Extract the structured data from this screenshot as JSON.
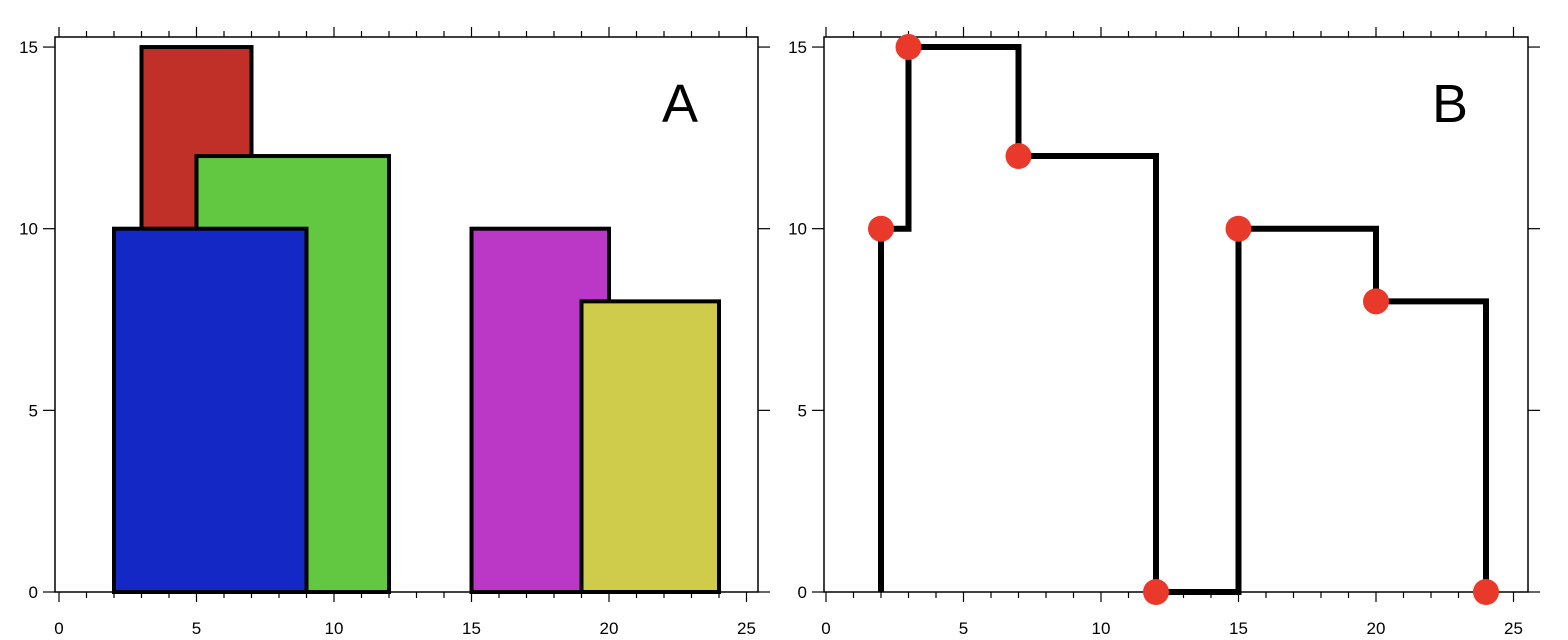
{
  "chart_data": [
    {
      "type": "bar",
      "subtype": "overlapping-rectangles",
      "panel_label": "A",
      "xlim": [
        0,
        25
      ],
      "ylim": [
        0,
        15
      ],
      "x_ticks": [
        0,
        5,
        10,
        15,
        20,
        25
      ],
      "y_ticks": [
        0,
        5,
        10,
        15
      ],
      "grid": false,
      "rectangles": [
        {
          "x_left": 3,
          "x_right": 7,
          "height": 15,
          "color": "#c03028"
        },
        {
          "x_left": 5,
          "x_right": 12,
          "height": 12,
          "color": "#62c842"
        },
        {
          "x_left": 2,
          "x_right": 9,
          "height": 10,
          "color": "#1328c4"
        },
        {
          "x_left": 15,
          "x_right": 20,
          "height": 10,
          "color": "#bb38c6"
        },
        {
          "x_left": 19,
          "x_right": 24,
          "height": 8,
          "color": "#cfcc4b"
        }
      ]
    },
    {
      "type": "line",
      "subtype": "skyline-step",
      "panel_label": "B",
      "xlim": [
        0,
        25
      ],
      "ylim": [
        0,
        15
      ],
      "x_ticks": [
        0,
        5,
        10,
        15,
        20,
        25
      ],
      "y_ticks": [
        0,
        5,
        10,
        15
      ],
      "grid": false,
      "line_color": "#000000",
      "marker_color": "#e8392a",
      "series": [
        {
          "x": [
            2,
            2,
            3,
            3,
            7,
            7,
            12,
            12,
            15,
            15,
            20,
            20,
            24,
            24
          ],
          "y": [
            0,
            10,
            10,
            15,
            15,
            12,
            12,
            0,
            0,
            10,
            10,
            8,
            8,
            0
          ]
        }
      ],
      "key_points": [
        {
          "x": 2,
          "y": 10
        },
        {
          "x": 3,
          "y": 15
        },
        {
          "x": 7,
          "y": 12
        },
        {
          "x": 12,
          "y": 0
        },
        {
          "x": 15,
          "y": 10
        },
        {
          "x": 20,
          "y": 8
        },
        {
          "x": 24,
          "y": 0
        }
      ]
    }
  ]
}
